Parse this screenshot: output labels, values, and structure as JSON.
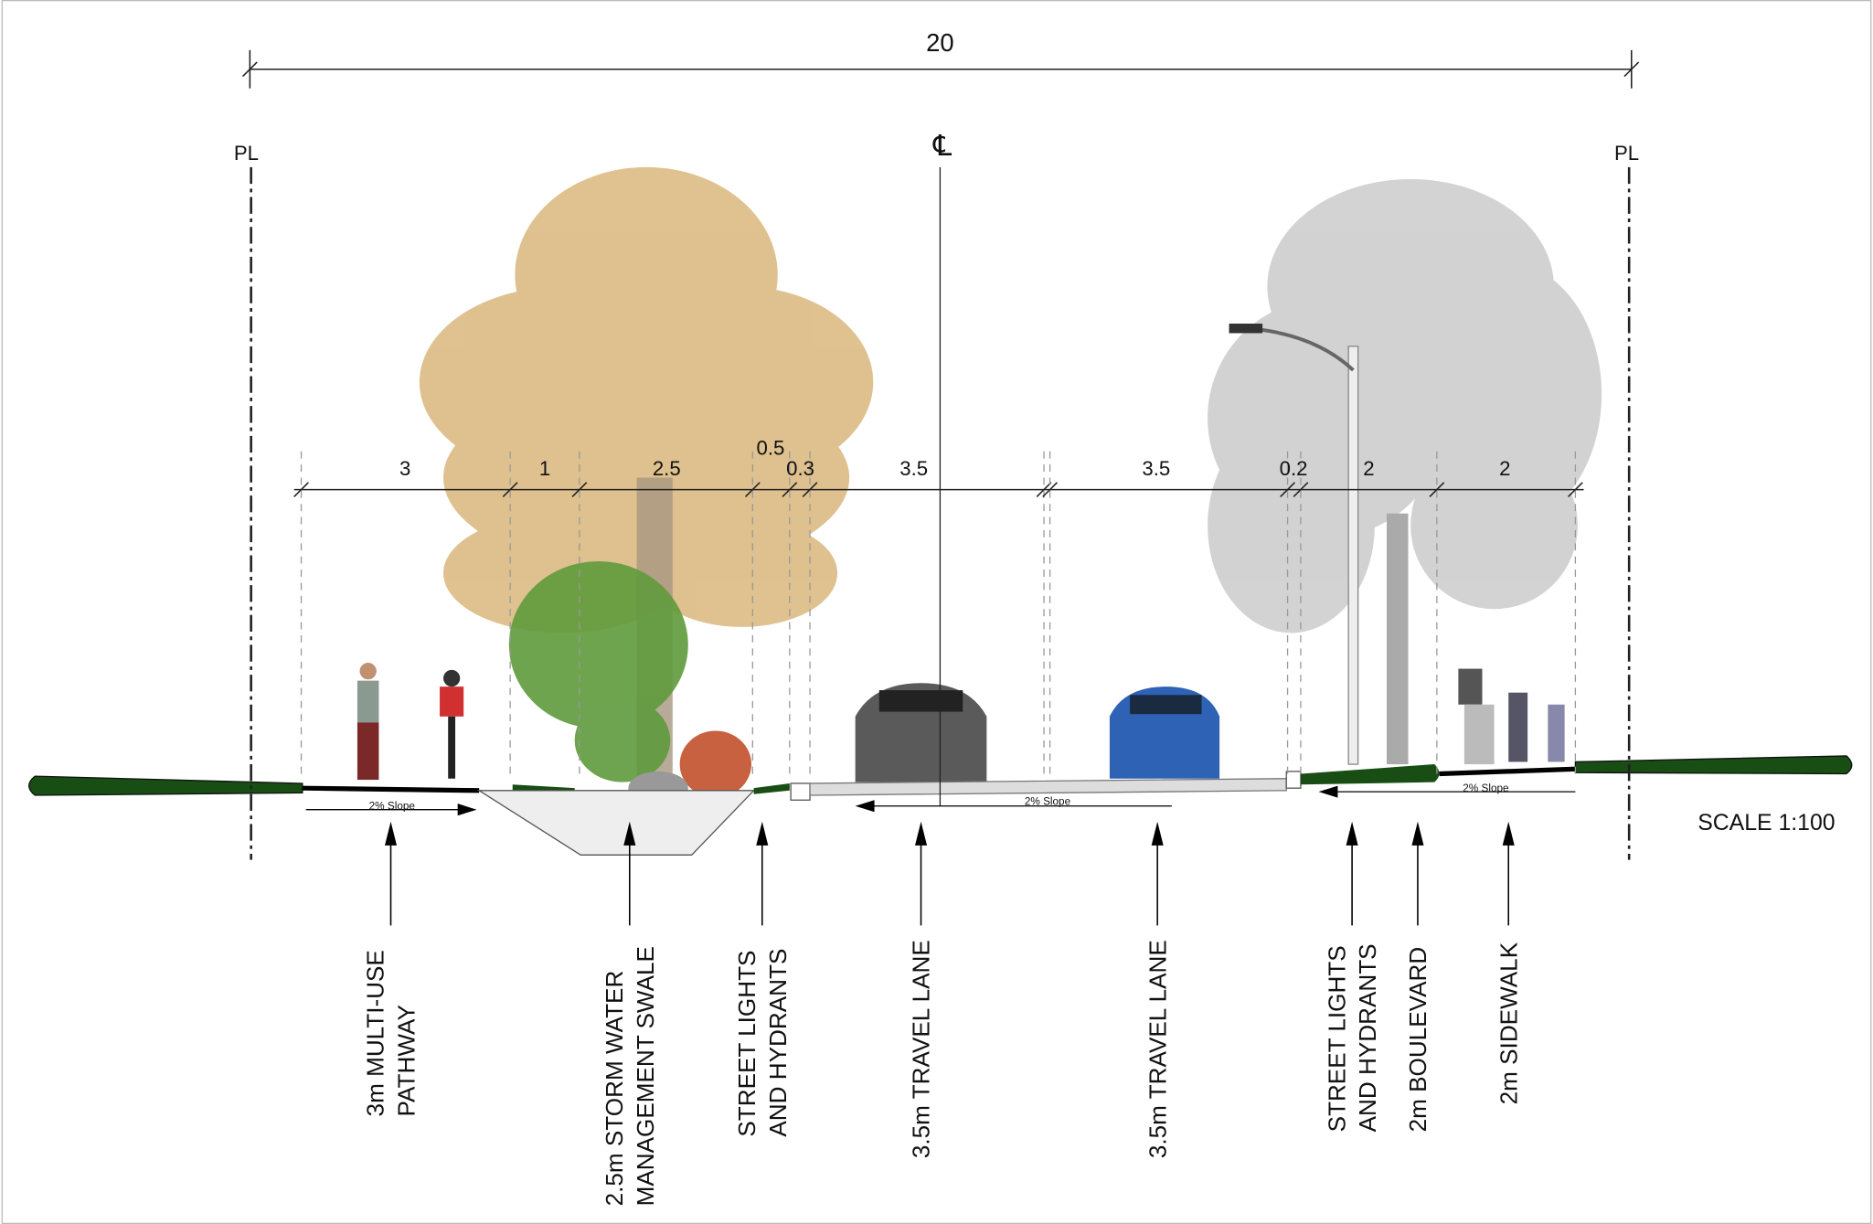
{
  "total_width": "20",
  "property_lines": [
    "PL",
    "PL"
  ],
  "centerline": "℄",
  "dimensions": [
    "3",
    "1",
    "2.5",
    "0.5",
    "0.3",
    "3.5",
    "3.5",
    "0.2",
    "2",
    "2"
  ],
  "slopes": [
    "2% Slope",
    "2% Slope",
    "2% Slope"
  ],
  "scale": "SCALE 1:100",
  "callouts": [
    {
      "lines": [
        "3m MULTI-USE",
        "PATHWAY"
      ]
    },
    {
      "lines": [
        "2.5m STORM WATER",
        "MANAGEMENT SWALE"
      ]
    },
    {
      "lines": [
        "STREET LIGHTS",
        "AND HYDRANTS"
      ]
    },
    {
      "lines": [
        "3.5m TRAVEL LANE"
      ]
    },
    {
      "lines": [
        "3.5m TRAVEL LANE"
      ]
    },
    {
      "lines": [
        "STREET LIGHTS",
        "AND HYDRANTS"
      ]
    },
    {
      "lines": [
        "2m BOULEVARD"
      ]
    },
    {
      "lines": [
        "2m SIDEWALK"
      ]
    }
  ]
}
